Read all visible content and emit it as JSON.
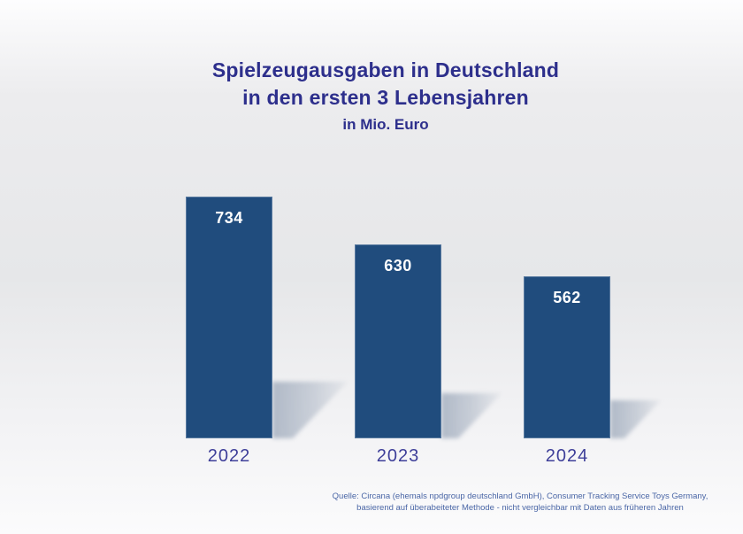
{
  "title": {
    "line1": "Spielzeugausgaben in Deutschland",
    "line2": "in den ersten 3 Lebensjahren",
    "line3": "in Mio. Euro"
  },
  "chart_data": {
    "type": "bar",
    "title": "Spielzeugausgaben in Deutschland in den ersten 3 Lebensjahren",
    "unit": "Mio. Euro",
    "categories": [
      "2022",
      "2023",
      "2024"
    ],
    "values": [
      734,
      630,
      562
    ],
    "value_labels": [
      "734",
      "630",
      "562"
    ],
    "grid": false,
    "legend": false,
    "axis_visible": false,
    "bar_color": "#204c7d",
    "value_label_color": "#ffffff",
    "category_label_color": "#3e3f99",
    "note": "y-axis does not start at zero"
  },
  "source": {
    "line1": "Quelle: Circana (ehemals npdgroup deutschland GmbH), Consumer Tracking Service Toys Germany,",
    "line2": "basierend auf überabeiteter Methode - nicht vergleichbar mit Daten aus früheren Jahren"
  },
  "colors": {
    "title_text": "#2d2f8c",
    "source_text": "#4a66a6",
    "bar_fill": "#204c7d",
    "shadow": "#a4afbf",
    "background_mid": "#e6e7e9"
  }
}
